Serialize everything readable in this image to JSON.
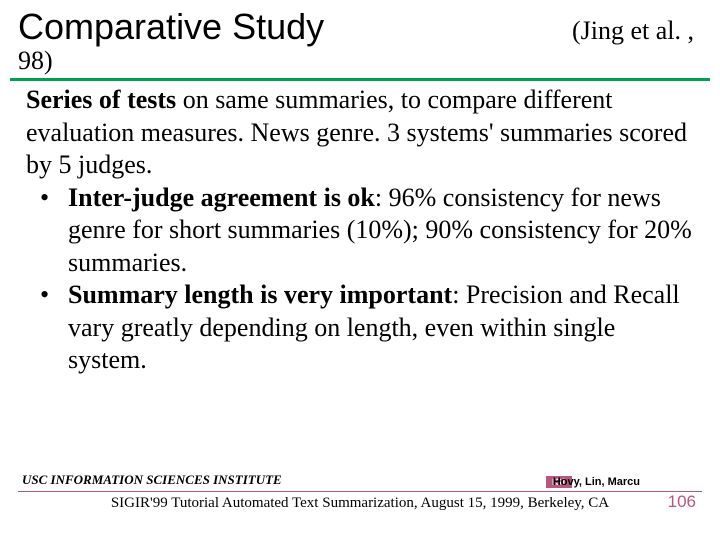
{
  "colors": {
    "accent_green": "#00a050",
    "accent_maroon": "#b9567e",
    "text": "#000000",
    "background": "#ffffff"
  },
  "typography": {
    "title_font": "Arial",
    "title_size_pt": 36,
    "body_font": "Times New Roman",
    "body_size_pt": 26,
    "footer_size_pt": 13
  },
  "title": "Comparative Study",
  "citation_part1": "(Jing et al. ,",
  "citation_part2": "98)",
  "body": {
    "intro_bold": "Series of tests",
    "intro_rest": " on same summaries, to compare different evaluation measures. News genre. 3 systems' summaries scored by 5 judges.",
    "bullets": [
      {
        "bold": "Inter-judge agreement is ok",
        "rest": ": 96% consistency for news genre for short summaries (10%); 90% consistency for 20% summaries."
      },
      {
        "bold": "Summary length is very important",
        "rest": ": Precision and Recall vary greatly depending on length, even within single system."
      }
    ]
  },
  "footer": {
    "left": "USC INFORMATION SCIENCES INSTITUTE",
    "badge": "ISI",
    "right": "Hovy, Lin, Marcu",
    "center": "SIGIR'99 Tutorial Automated Text Summarization, August 15, 1999, Berkeley, CA",
    "page": "106"
  }
}
